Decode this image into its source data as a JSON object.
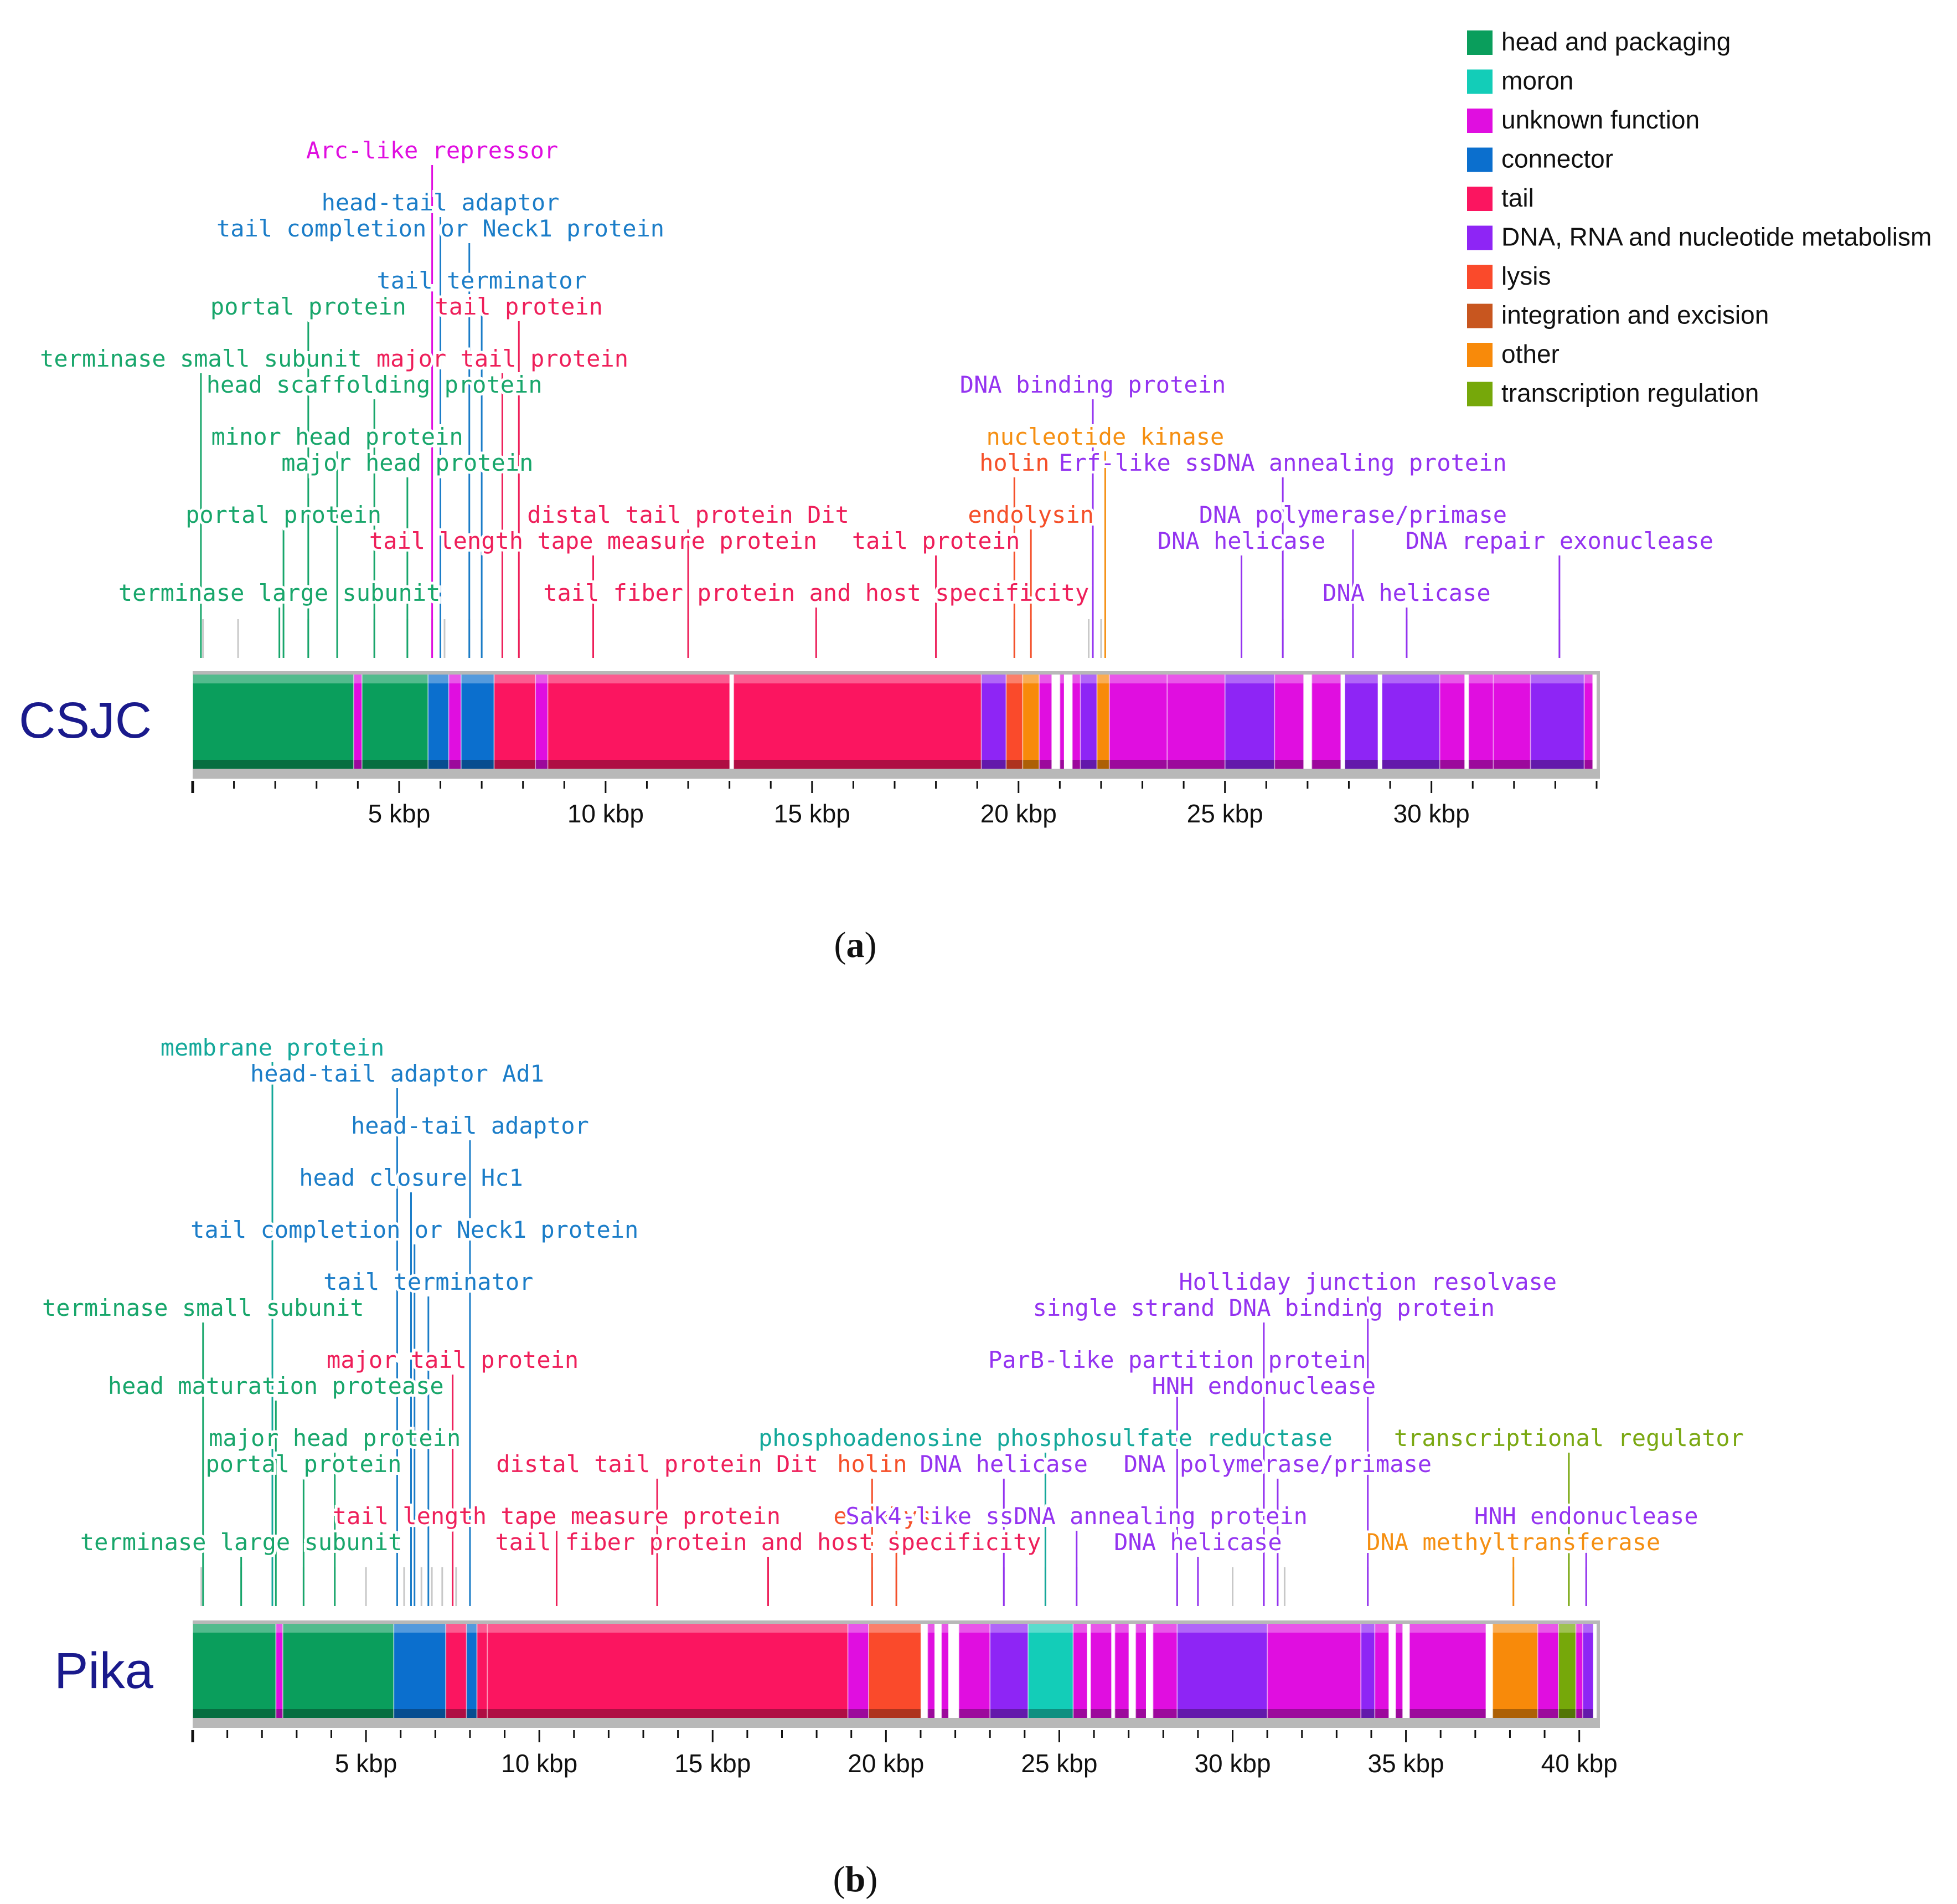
{
  "legend": [
    {
      "key": "head_packaging",
      "label": "head and packaging",
      "color": "#0a9e5c"
    },
    {
      "key": "moron",
      "label": "moron",
      "color": "#13cdb8"
    },
    {
      "key": "unknown",
      "label": "unknown function",
      "color": "#e00ee0"
    },
    {
      "key": "connector",
      "label": "connector",
      "color": "#0b6fce"
    },
    {
      "key": "tail",
      "label": "tail",
      "color": "#fb1560"
    },
    {
      "key": "dna",
      "label": "DNA, RNA and nucleotide metabolism",
      "color": "#8e25f5"
    },
    {
      "key": "lysis",
      "label": "lysis",
      "color": "#fa4a2b"
    },
    {
      "key": "integration",
      "label": "integration and excision",
      "color": "#c8561f"
    },
    {
      "key": "other",
      "label": "other",
      "color": "#f88a0a"
    },
    {
      "key": "transcription",
      "label": "transcription regulation",
      "color": "#76a80a"
    }
  ],
  "label_colors": {
    "head_packaging": "#18a66b",
    "moron": "#14a89a",
    "unknown": "#e00ee0",
    "connector": "#1b7dc8",
    "tail": "#ee1f5a",
    "dna": "#9433f0",
    "lysis": "#f5502a",
    "integration": "#c8561f",
    "other": "#f58f12",
    "transcription": "#7aa812"
  },
  "panels": [
    {
      "id": "a",
      "name": "CSJC",
      "caption": "a",
      "length_kbp": 34,
      "ticks": [
        {
          "kbp": 5,
          "label": "5 kbp"
        },
        {
          "kbp": 10,
          "label": "10 kbp"
        },
        {
          "kbp": 15,
          "label": "15 kbp"
        },
        {
          "kbp": 20,
          "label": "20 kbp"
        },
        {
          "kbp": 25,
          "label": "25 kbp"
        },
        {
          "kbp": 30,
          "label": "30 kbp"
        }
      ],
      "segments": [
        {
          "start": 0,
          "end": 3.9,
          "cat": "head_packaging"
        },
        {
          "start": 3.9,
          "end": 4.1,
          "cat": "unknown"
        },
        {
          "start": 4.1,
          "end": 5.7,
          "cat": "head_packaging"
        },
        {
          "start": 5.7,
          "end": 6.2,
          "cat": "connector"
        },
        {
          "start": 6.2,
          "end": 6.5,
          "cat": "unknown"
        },
        {
          "start": 6.5,
          "end": 7.3,
          "cat": "connector"
        },
        {
          "start": 7.3,
          "end": 8.3,
          "cat": "tail"
        },
        {
          "start": 8.3,
          "end": 8.6,
          "cat": "unknown"
        },
        {
          "start": 8.6,
          "end": 13.0,
          "cat": "tail"
        },
        {
          "start": 13.1,
          "end": 19.1,
          "cat": "tail"
        },
        {
          "start": 19.1,
          "end": 19.7,
          "cat": "dna"
        },
        {
          "start": 19.7,
          "end": 20.1,
          "cat": "lysis"
        },
        {
          "start": 20.1,
          "end": 20.5,
          "cat": "other"
        },
        {
          "start": 20.5,
          "end": 20.8,
          "cat": "unknown"
        },
        {
          "start": 21.0,
          "end": 21.1,
          "cat": "unknown"
        },
        {
          "start": 21.3,
          "end": 21.5,
          "cat": "unknown"
        },
        {
          "start": 21.5,
          "end": 21.9,
          "cat": "dna"
        },
        {
          "start": 21.9,
          "end": 22.2,
          "cat": "other"
        },
        {
          "start": 22.2,
          "end": 23.6,
          "cat": "unknown"
        },
        {
          "start": 23.6,
          "end": 25.0,
          "cat": "unknown"
        },
        {
          "start": 25.0,
          "end": 26.2,
          "cat": "dna"
        },
        {
          "start": 26.2,
          "end": 26.9,
          "cat": "unknown"
        },
        {
          "start": 27.1,
          "end": 27.8,
          "cat": "unknown"
        },
        {
          "start": 27.9,
          "end": 28.7,
          "cat": "dna"
        },
        {
          "start": 28.8,
          "end": 30.2,
          "cat": "dna"
        },
        {
          "start": 30.2,
          "end": 30.8,
          "cat": "unknown"
        },
        {
          "start": 30.9,
          "end": 31.5,
          "cat": "unknown"
        },
        {
          "start": 31.5,
          "end": 32.4,
          "cat": "unknown"
        },
        {
          "start": 32.4,
          "end": 33.7,
          "cat": "dna"
        },
        {
          "start": 33.7,
          "end": 33.9,
          "cat": "unknown"
        }
      ],
      "annotations": [
        {
          "text": "Arc-like repressor",
          "cat": "unknown",
          "row": 0,
          "anchor_kbp": 5.8,
          "text_kbp": 5.8
        },
        {
          "text": "head-tail adaptor",
          "cat": "connector",
          "row": 2,
          "anchor_kbp": 6.0,
          "text_kbp": 6.0
        },
        {
          "text": "tail completion or Neck1 protein",
          "cat": "connector",
          "row": 3,
          "anchor_kbp": 6.7,
          "text_kbp": 6.0
        },
        {
          "text": "tail terminator",
          "cat": "connector",
          "row": 5,
          "anchor_kbp": 7.0,
          "text_kbp": 7.0
        },
        {
          "text": "portal protein",
          "cat": "head_packaging",
          "row": 6,
          "anchor_kbp": 2.8,
          "text_kbp": 2.8
        },
        {
          "text": "tail protein",
          "cat": "tail",
          "row": 6,
          "anchor_kbp": 7.9,
          "text_kbp": 7.9
        },
        {
          "text": "terminase small subunit",
          "cat": "head_packaging",
          "row": 8,
          "anchor_kbp": 0.2,
          "text_kbp": 0.2
        },
        {
          "text": "major tail protein",
          "cat": "tail",
          "row": 8,
          "anchor_kbp": 7.5,
          "text_kbp": 7.5
        },
        {
          "text": "head scaffolding protein",
          "cat": "head_packaging",
          "row": 9,
          "anchor_kbp": 4.4,
          "text_kbp": 4.4
        },
        {
          "text": "DNA binding protein",
          "cat": "dna",
          "row": 9,
          "anchor_kbp": 21.8,
          "text_kbp": 21.8
        },
        {
          "text": "minor head protein",
          "cat": "head_packaging",
          "row": 11,
          "anchor_kbp": 3.5,
          "text_kbp": 3.5
        },
        {
          "text": "nucleotide kinase",
          "cat": "other",
          "row": 11,
          "anchor_kbp": 22.1,
          "text_kbp": 22.1
        },
        {
          "text": "major head protein",
          "cat": "head_packaging",
          "row": 12,
          "anchor_kbp": 5.2,
          "text_kbp": 5.2
        },
        {
          "text": "holin",
          "cat": "lysis",
          "row": 12,
          "anchor_kbp": 19.9,
          "text_kbp": 19.9
        },
        {
          "text": "Erf-like ssDNA annealing protein",
          "cat": "dna",
          "row": 12,
          "anchor_kbp": 26.4,
          "text_kbp": 26.4
        },
        {
          "text": "portal protein",
          "cat": "head_packaging",
          "row": 14,
          "anchor_kbp": 2.2,
          "text_kbp": 2.2
        },
        {
          "text": "distal tail protein Dit",
          "cat": "tail",
          "row": 14,
          "anchor_kbp": 12.0,
          "text_kbp": 12.0
        },
        {
          "text": "endolysin",
          "cat": "lysis",
          "row": 14,
          "anchor_kbp": 20.3,
          "text_kbp": 20.3
        },
        {
          "text": "DNA polymerase/primase",
          "cat": "dna",
          "row": 14,
          "anchor_kbp": 28.1,
          "text_kbp": 28.1
        },
        {
          "text": "tail length tape measure protein",
          "cat": "tail",
          "row": 15,
          "anchor_kbp": 9.7,
          "text_kbp": 9.7
        },
        {
          "text": "tail protein",
          "cat": "tail",
          "row": 15,
          "anchor_kbp": 18.0,
          "text_kbp": 18.0
        },
        {
          "text": "DNA helicase",
          "cat": "dna",
          "row": 15,
          "anchor_kbp": 25.4,
          "text_kbp": 25.4
        },
        {
          "text": "DNA repair exonuclease",
          "cat": "dna",
          "row": 15,
          "anchor_kbp": 33.1,
          "text_kbp": 33.1
        },
        {
          "text": "terminase large subunit",
          "cat": "head_packaging",
          "row": 17,
          "anchor_kbp": 2.1,
          "text_kbp": 2.1
        },
        {
          "text": "tail fiber protein and host specificity",
          "cat": "tail",
          "row": 17,
          "anchor_kbp": 15.1,
          "text_kbp": 15.1
        },
        {
          "text": "DNA helicase",
          "cat": "dna",
          "row": 17,
          "anchor_kbp": 29.4,
          "text_kbp": 29.4
        }
      ],
      "extra_lines_kbp": [
        0.25,
        1.1,
        2.8,
        3.5,
        4.4,
        5.2,
        5.8,
        6.0,
        6.1,
        6.7,
        7.0,
        7.5,
        7.9,
        9.7,
        12.0,
        15.1,
        18.0,
        19.9,
        20.3,
        21.7,
        22.0,
        25.4,
        26.4,
        28.1,
        29.4,
        33.1
      ]
    },
    {
      "id": "b",
      "name": "Pika",
      "caption": "b",
      "length_kbp": 40.5,
      "ticks": [
        {
          "kbp": 5,
          "label": "5 kbp"
        },
        {
          "kbp": 10,
          "label": "10 kbp"
        },
        {
          "kbp": 15,
          "label": "15 kbp"
        },
        {
          "kbp": 20,
          "label": "20 kbp"
        },
        {
          "kbp": 25,
          "label": "25 kbp"
        },
        {
          "kbp": 30,
          "label": "30 kbp"
        },
        {
          "kbp": 35,
          "label": "35 kbp"
        },
        {
          "kbp": 40,
          "label": "40 kbp"
        }
      ],
      "segments": [
        {
          "start": 0,
          "end": 2.4,
          "cat": "head_packaging"
        },
        {
          "start": 2.4,
          "end": 2.6,
          "cat": "unknown"
        },
        {
          "start": 2.6,
          "end": 5.8,
          "cat": "head_packaging"
        },
        {
          "start": 5.8,
          "end": 7.3,
          "cat": "connector"
        },
        {
          "start": 7.3,
          "end": 7.9,
          "cat": "tail"
        },
        {
          "start": 7.9,
          "end": 8.2,
          "cat": "connector"
        },
        {
          "start": 8.2,
          "end": 8.5,
          "cat": "tail"
        },
        {
          "start": 8.5,
          "end": 18.9,
          "cat": "tail"
        },
        {
          "start": 18.9,
          "end": 19.5,
          "cat": "unknown"
        },
        {
          "start": 19.5,
          "end": 21.0,
          "cat": "lysis"
        },
        {
          "start": 21.2,
          "end": 21.4,
          "cat": "unknown"
        },
        {
          "start": 21.6,
          "end": 21.8,
          "cat": "unknown"
        },
        {
          "start": 22.1,
          "end": 23.0,
          "cat": "unknown"
        },
        {
          "start": 23.0,
          "end": 24.1,
          "cat": "dna"
        },
        {
          "start": 24.1,
          "end": 25.4,
          "cat": "moron"
        },
        {
          "start": 25.4,
          "end": 25.8,
          "cat": "unknown"
        },
        {
          "start": 25.9,
          "end": 26.5,
          "cat": "unknown"
        },
        {
          "start": 26.6,
          "end": 27.0,
          "cat": "unknown"
        },
        {
          "start": 27.2,
          "end": 27.5,
          "cat": "unknown"
        },
        {
          "start": 27.7,
          "end": 28.4,
          "cat": "unknown"
        },
        {
          "start": 28.4,
          "end": 31.0,
          "cat": "dna"
        },
        {
          "start": 31.0,
          "end": 33.7,
          "cat": "unknown"
        },
        {
          "start": 33.7,
          "end": 34.1,
          "cat": "dna"
        },
        {
          "start": 34.1,
          "end": 34.5,
          "cat": "unknown"
        },
        {
          "start": 34.7,
          "end": 34.9,
          "cat": "unknown"
        },
        {
          "start": 35.1,
          "end": 37.3,
          "cat": "unknown"
        },
        {
          "start": 37.5,
          "end": 38.8,
          "cat": "other"
        },
        {
          "start": 38.8,
          "end": 39.4,
          "cat": "unknown"
        },
        {
          "start": 39.4,
          "end": 39.9,
          "cat": "transcription"
        },
        {
          "start": 39.9,
          "end": 40.1,
          "cat": "unknown"
        },
        {
          "start": 40.1,
          "end": 40.4,
          "cat": "dna"
        }
      ],
      "annotations": [
        {
          "text": "membrane protein",
          "cat": "moron",
          "row": 0,
          "anchor_kbp": 2.3,
          "text_kbp": 2.3
        },
        {
          "text": "head-tail adaptor Ad1",
          "cat": "connector",
          "row": 1,
          "anchor_kbp": 5.9,
          "text_kbp": 5.9
        },
        {
          "text": "head-tail adaptor",
          "cat": "connector",
          "row": 3,
          "anchor_kbp": 8.0,
          "text_kbp": 8.0
        },
        {
          "text": "head closure Hc1",
          "cat": "connector",
          "row": 5,
          "anchor_kbp": 6.3,
          "text_kbp": 6.3
        },
        {
          "text": "tail completion or Neck1 protein",
          "cat": "connector",
          "row": 7,
          "anchor_kbp": 6.4,
          "text_kbp": 6.4
        },
        {
          "text": "tail terminator",
          "cat": "connector",
          "row": 9,
          "anchor_kbp": 6.8,
          "text_kbp": 6.8
        },
        {
          "text": "Holliday junction resolvase",
          "cat": "dna",
          "row": 9,
          "anchor_kbp": 33.9,
          "text_kbp": 33.9
        },
        {
          "text": "terminase small subunit",
          "cat": "head_packaging",
          "row": 10,
          "anchor_kbp": 0.3,
          "text_kbp": 0.3
        },
        {
          "text": "single strand DNA binding protein",
          "cat": "dna",
          "row": 10,
          "anchor_kbp": 30.9,
          "text_kbp": 30.9
        },
        {
          "text": "major tail protein",
          "cat": "tail",
          "row": 12,
          "anchor_kbp": 7.5,
          "text_kbp": 7.5
        },
        {
          "text": "ParB-like partition protein",
          "cat": "dna",
          "row": 12,
          "anchor_kbp": 28.4,
          "text_kbp": 28.4
        },
        {
          "text": "head maturation protease",
          "cat": "head_packaging",
          "row": 13,
          "anchor_kbp": 2.4,
          "text_kbp": 2.4
        },
        {
          "text": "HNH endonuclease",
          "cat": "dna",
          "row": 13,
          "anchor_kbp": 30.9,
          "text_kbp": 30.9
        },
        {
          "text": "major head protein",
          "cat": "head_packaging",
          "row": 15,
          "anchor_kbp": 4.1,
          "text_kbp": 4.1
        },
        {
          "text": "phosphoadenosine phosphosulfate reductase",
          "cat": "moron",
          "row": 15,
          "anchor_kbp": 24.6,
          "text_kbp": 24.6
        },
        {
          "text": "transcriptional regulator",
          "cat": "transcription",
          "row": 15,
          "anchor_kbp": 39.7,
          "text_kbp": 39.7
        },
        {
          "text": "portal protein",
          "cat": "head_packaging",
          "row": 16,
          "anchor_kbp": 3.2,
          "text_kbp": 3.2
        },
        {
          "text": "distal tail protein Dit",
          "cat": "tail",
          "row": 16,
          "anchor_kbp": 13.4,
          "text_kbp": 13.4
        },
        {
          "text": "holin",
          "cat": "lysis",
          "row": 16,
          "anchor_kbp": 19.6,
          "text_kbp": 19.6
        },
        {
          "text": "DNA helicase",
          "cat": "dna",
          "row": 16,
          "anchor_kbp": 23.4,
          "text_kbp": 23.4
        },
        {
          "text": "DNA polymerase/primase",
          "cat": "dna",
          "row": 16,
          "anchor_kbp": 31.3,
          "text_kbp": 31.3
        },
        {
          "text": "tail length tape measure protein",
          "cat": "tail",
          "row": 18,
          "anchor_kbp": 10.5,
          "text_kbp": 10.5
        },
        {
          "text": "endolysin",
          "cat": "lysis",
          "row": 18,
          "anchor_kbp": 20.3,
          "text_kbp": 20.3
        },
        {
          "text": "Sak4-like ssDNA annealing protein",
          "cat": "dna",
          "row": 18,
          "anchor_kbp": 25.5,
          "text_kbp": 25.5
        },
        {
          "text": "HNH endonuclease",
          "cat": "dna",
          "row": 18,
          "anchor_kbp": 40.2,
          "text_kbp": 40.2
        },
        {
          "text": "terminase large subunit",
          "cat": "head_packaging",
          "row": 19,
          "anchor_kbp": 1.4,
          "text_kbp": 1.4
        },
        {
          "text": "tail fiber protein and host specificity",
          "cat": "tail",
          "row": 19,
          "anchor_kbp": 16.6,
          "text_kbp": 16.6
        },
        {
          "text": "DNA helicase",
          "cat": "dna",
          "row": 19,
          "anchor_kbp": 29.0,
          "text_kbp": 29.0
        },
        {
          "text": "DNA methyltransferase",
          "cat": "other",
          "row": 19,
          "anchor_kbp": 38.1,
          "text_kbp": 38.1
        }
      ],
      "extra_lines_kbp": [
        0.25,
        1.4,
        2.3,
        3.2,
        4.1,
        5.0,
        5.9,
        6.1,
        6.3,
        6.6,
        6.9,
        7.2,
        7.6,
        8.0,
        10.5,
        13.4,
        16.6,
        19.6,
        20.3,
        23.4,
        24.6,
        25.5,
        28.4,
        29.0,
        30.0,
        30.9,
        31.5,
        33.9,
        38.1,
        39.7,
        40.2
      ]
    }
  ]
}
